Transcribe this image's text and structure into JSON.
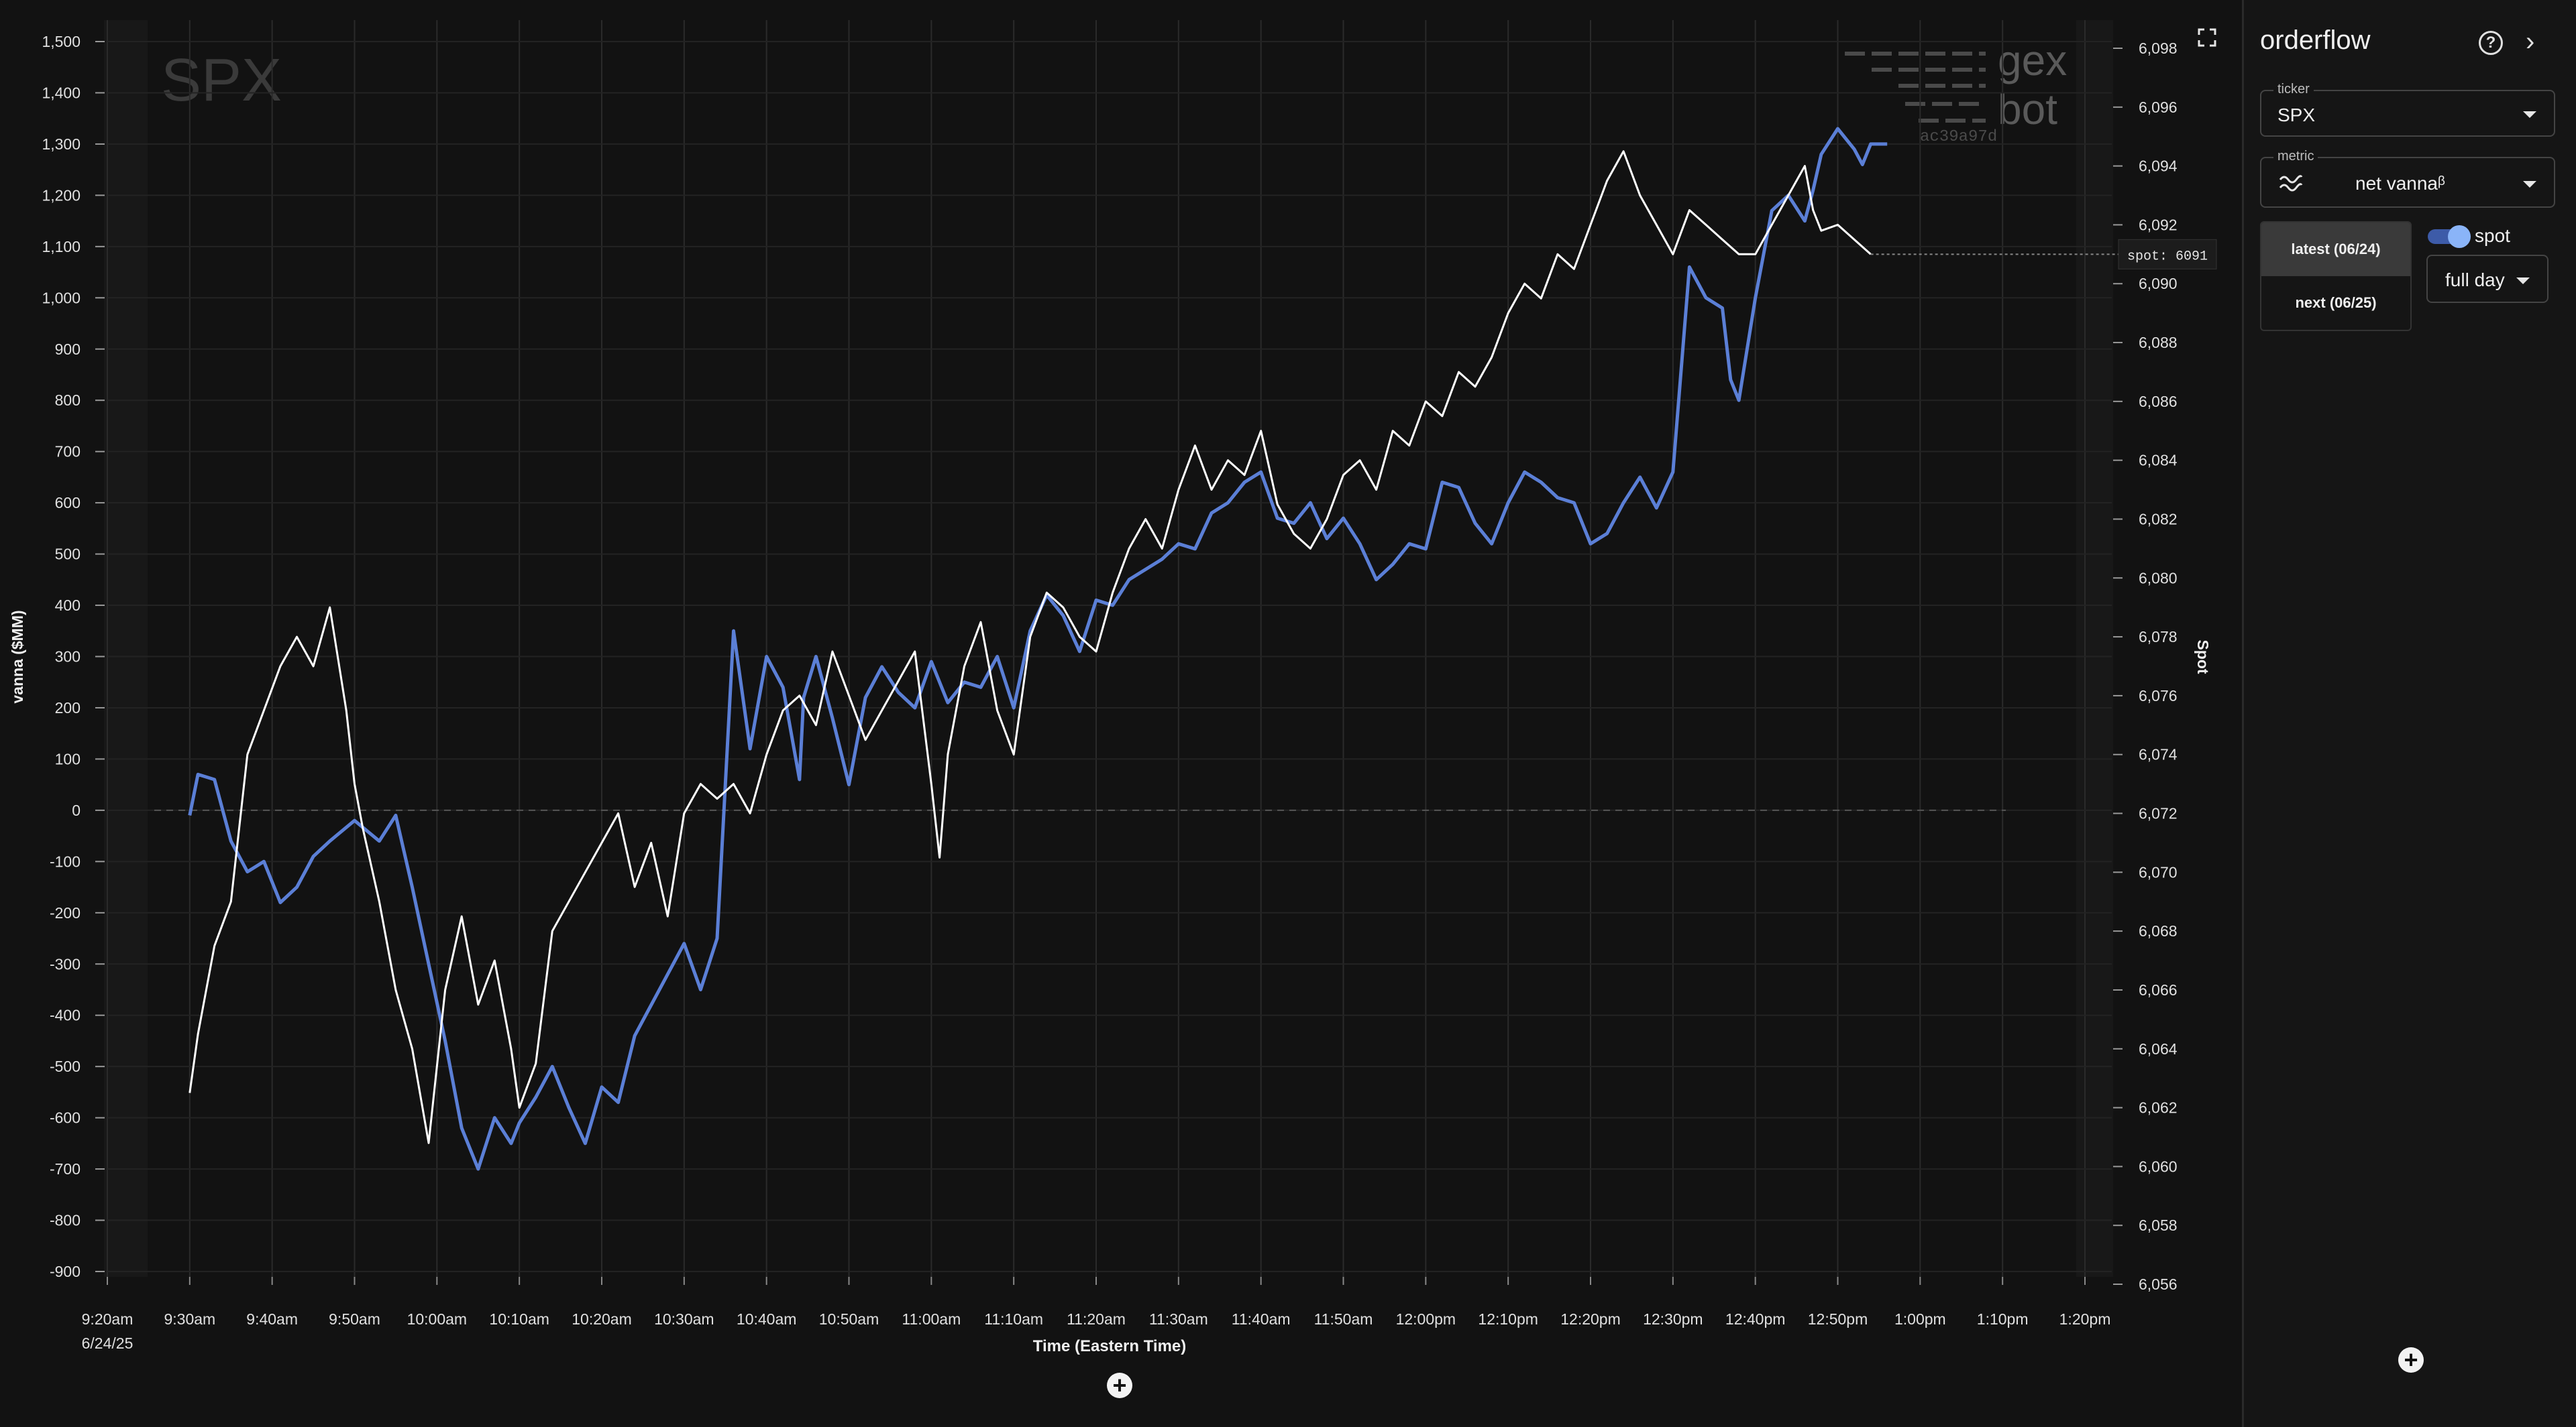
{
  "watermark": {
    "ticker": "SPX",
    "brand_line1": "gex",
    "brand_line2": "bot",
    "build": "ac39a97d"
  },
  "sidebar": {
    "title": "orderflow",
    "ticker_label": "ticker",
    "ticker_value": "SPX",
    "metric_label": "metric",
    "metric_value": "net vannaᵝ",
    "expiry_options": [
      "latest (06/24)",
      "next (06/25)"
    ],
    "spot_toggle_label": "spot",
    "spot_toggle_on": true,
    "range_value": "full day",
    "icons": [
      "help-circle-icon",
      "chevron-right-icon",
      "vanna-wave-icon",
      "add-icon"
    ]
  },
  "spot_tag": "spot: 6091",
  "chart_data": {
    "type": "line",
    "xlabel": "Time (Eastern Time)",
    "ylabel": "vanna ($MM)",
    "y2label": "Spot",
    "x_ticks": [
      "9:20am",
      "9:30am",
      "9:40am",
      "9:50am",
      "10:00am",
      "10:10am",
      "10:20am",
      "10:30am",
      "10:40am",
      "10:50am",
      "11:00am",
      "11:10am",
      "11:20am",
      "11:30am",
      "11:40am",
      "11:50am",
      "12:00pm",
      "12:10pm",
      "12:20pm",
      "12:30pm",
      "12:40pm",
      "12:50pm",
      "1:00pm",
      "1:10pm",
      "1:20pm"
    ],
    "x_date_label": "6/24/25",
    "x_range_minutes": [
      0,
      240
    ],
    "ylim": [
      -900,
      1500
    ],
    "y_ticks": [
      "1,500",
      "1,400",
      "1,300",
      "1,200",
      "1,100",
      "1,000",
      "900",
      "800",
      "700",
      "600",
      "500",
      "400",
      "300",
      "200",
      "100",
      "0",
      "-100",
      "-200",
      "-300",
      "-400",
      "-500",
      "-600",
      "-700",
      "-800",
      "-900"
    ],
    "y2lim": [
      6056,
      6098
    ],
    "y2_ticks": [
      "6,098",
      "6,096",
      "6,094",
      "6,092",
      "6,090",
      "6,088",
      "6,086",
      "6,084",
      "6,082",
      "6,080",
      "6,078",
      "6,076",
      "6,074",
      "6,072",
      "6,070",
      "6,068",
      "6,066",
      "6,064",
      "6,062",
      "6,060",
      "6,058",
      "6,056"
    ],
    "grid": true,
    "series": [
      {
        "axis": "left",
        "color": "#5b7fd6",
        "x": [
          10,
          11,
          13,
          15,
          17,
          19,
          21,
          23,
          25,
          27,
          30,
          33,
          35,
          37,
          39,
          41,
          43,
          45,
          47,
          49,
          50,
          52,
          54,
          56,
          58,
          60,
          62,
          64,
          66,
          68,
          70,
          72,
          74,
          76,
          78,
          80,
          82,
          84,
          84.5,
          86,
          88,
          90,
          92,
          94,
          96,
          98,
          100,
          102,
          104,
          106,
          108,
          110,
          112,
          114,
          116,
          118,
          120,
          122,
          124,
          126,
          128,
          130,
          132,
          134,
          136,
          138,
          140,
          142,
          144,
          146,
          148,
          150,
          152,
          154,
          156,
          158,
          160,
          162,
          164,
          166,
          168,
          170,
          172,
          174,
          176,
          178,
          180,
          182,
          184,
          186,
          188,
          190,
          192,
          194,
          196,
          197,
          198,
          200,
          202,
          204,
          206,
          207,
          208,
          210,
          212,
          213,
          214,
          216
        ],
        "values": [
          -10,
          70,
          60,
          -60,
          -120,
          -100,
          -180,
          -150,
          -90,
          -60,
          -20,
          -60,
          -10,
          -150,
          -300,
          -450,
          -620,
          -700,
          -600,
          -650,
          -610,
          -560,
          -500,
          -580,
          -650,
          -540,
          -570,
          -440,
          -380,
          -320,
          -260,
          -350,
          -250,
          350,
          120,
          300,
          240,
          60,
          220,
          300,
          180,
          50,
          220,
          280,
          230,
          200,
          290,
          210,
          250,
          240,
          300,
          200,
          350,
          420,
          380,
          310,
          410,
          400,
          450,
          470,
          490,
          520,
          510,
          580,
          600,
          640,
          660,
          570,
          560,
          600,
          530,
          570,
          520,
          450,
          480,
          520,
          510,
          640,
          630,
          560,
          520,
          600,
          660,
          640,
          610,
          600,
          520,
          540,
          600,
          650,
          590,
          660,
          1060,
          1000,
          980,
          840,
          800,
          1000,
          1170,
          1200,
          1150,
          1210,
          1280,
          1330,
          1290,
          1260,
          1300,
          1300
        ]
      },
      {
        "axis": "right",
        "color": "#ffffff",
        "x": [
          10,
          11,
          12,
          13,
          15,
          17,
          19,
          21,
          23,
          25,
          27,
          29,
          30,
          31,
          33,
          35,
          37,
          39,
          41,
          43,
          45,
          47,
          49,
          50,
          52,
          54,
          56,
          58,
          60,
          62,
          64,
          66,
          68,
          70,
          72,
          74,
          76,
          78,
          80,
          82,
          84,
          86,
          88,
          90,
          92,
          94,
          96,
          98,
          100,
          101,
          102,
          104,
          106,
          108,
          110,
          112,
          114,
          116,
          118,
          120,
          122,
          124,
          126,
          128,
          130,
          132,
          134,
          136,
          138,
          140,
          142,
          144,
          146,
          148,
          150,
          152,
          154,
          156,
          158,
          160,
          162,
          164,
          166,
          168,
          170,
          172,
          174,
          176,
          178,
          180,
          182,
          184,
          186,
          188,
          190,
          192,
          194,
          196,
          198,
          200,
          202,
          204,
          206,
          207,
          208,
          210,
          212,
          214
        ],
        "values": [
          6062.5,
          6064.5,
          6066.0,
          6067.5,
          6069.0,
          6074.0,
          6075.5,
          6077.0,
          6078.0,
          6077.0,
          6079.0,
          6075.5,
          6073.0,
          6071.5,
          6069.0,
          6066.0,
          6064.0,
          6060.8,
          6066.0,
          6068.5,
          6065.5,
          6067.0,
          6064.0,
          6062.0,
          6063.5,
          6068.0,
          6069.0,
          6070.0,
          6071.0,
          6072.0,
          6069.5,
          6071.0,
          6068.5,
          6072.0,
          6073.0,
          6072.5,
          6073.0,
          6072.0,
          6074.0,
          6075.5,
          6076.0,
          6075.0,
          6077.5,
          6076.0,
          6074.5,
          6075.5,
          6076.5,
          6077.5,
          6073.0,
          6070.5,
          6074.0,
          6077.0,
          6078.5,
          6075.5,
          6074.0,
          6078.0,
          6079.5,
          6079.0,
          6078.0,
          6077.5,
          6079.5,
          6081.0,
          6082.0,
          6081.0,
          6083.0,
          6084.5,
          6083.0,
          6084.0,
          6083.5,
          6085.0,
          6082.5,
          6081.5,
          6081.0,
          6082.0,
          6083.5,
          6084.0,
          6083.0,
          6085.0,
          6084.5,
          6086.0,
          6085.5,
          6087.0,
          6086.5,
          6087.5,
          6089.0,
          6090.0,
          6089.5,
          6091.0,
          6090.5,
          6092.0,
          6093.5,
          6094.5,
          6093.0,
          6092.0,
          6091.0,
          6092.5,
          6092.0,
          6091.5,
          6091.0,
          6091.0,
          6092.0,
          6093.0,
          6094.0,
          6092.5,
          6091.8,
          6092.0,
          6091.5,
          6091.0
        ]
      }
    ]
  }
}
